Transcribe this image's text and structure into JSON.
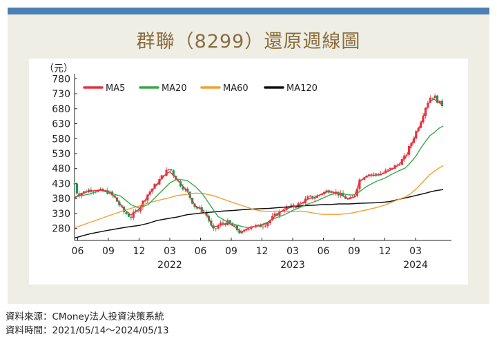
{
  "title": "群聯（8299）還原週線圖",
  "source_line": "資料來源：CMoney法人投資決策系統",
  "period_line": "資料時間：2021/05/14～2024/05/13",
  "chart_data": {
    "type": "candlestick",
    "title": "群聯（8299）還原週線圖",
    "ylabel": "（元）",
    "ylim": [
      240,
      790
    ],
    "y_ticks": [
      280,
      330,
      380,
      430,
      480,
      530,
      580,
      630,
      680,
      730,
      780
    ],
    "x_ticks": [
      {
        "t": 0.3,
        "label": "06"
      },
      {
        "t": 3.3,
        "label": "09"
      },
      {
        "t": 6.3,
        "label": "12"
      },
      {
        "t": 9.3,
        "label": "03"
      },
      {
        "t": 12.3,
        "label": "06"
      },
      {
        "t": 15.3,
        "label": "09"
      },
      {
        "t": 18.3,
        "label": "12"
      },
      {
        "t": 21.3,
        "label": "03"
      },
      {
        "t": 24.3,
        "label": "06"
      },
      {
        "t": 27.3,
        "label": "09"
      },
      {
        "t": 30.3,
        "label": "12"
      },
      {
        "t": 33.3,
        "label": "03"
      }
    ],
    "year_labels": [
      {
        "t": 9.3,
        "label": "2022"
      },
      {
        "t": 21.3,
        "label": "2023"
      },
      {
        "t": 33.3,
        "label": "2024"
      }
    ],
    "x_range": [
      0,
      36.8
    ],
    "legend": [
      {
        "name": "MA5",
        "color": "#e8323c"
      },
      {
        "name": "MA20",
        "color": "#3aa84a"
      },
      {
        "name": "MA60",
        "color": "#f0a030"
      },
      {
        "name": "MA120",
        "color": "#111111"
      }
    ],
    "legend_position": "top-left",
    "grid": false,
    "up_color": "#e8323c",
    "down_color": "#1a9a52",
    "price_path": [
      [
        0,
        430
      ],
      [
        0.3,
        392
      ],
      [
        0.8,
        400
      ],
      [
        1.5,
        410
      ],
      [
        2.5,
        405
      ],
      [
        3.3,
        402
      ],
      [
        4.0,
        378
      ],
      [
        4.8,
        335
      ],
      [
        5.5,
        318
      ],
      [
        6.3,
        348
      ],
      [
        7.2,
        398
      ],
      [
        8.0,
        430
      ],
      [
        8.8,
        465
      ],
      [
        9.3,
        482
      ],
      [
        10.0,
        440
      ],
      [
        11.0,
        402
      ],
      [
        11.8,
        350
      ],
      [
        12.5,
        340
      ],
      [
        13.0,
        318
      ],
      [
        13.5,
        270
      ],
      [
        14.2,
        295
      ],
      [
        15.0,
        300
      ],
      [
        15.8,
        278
      ],
      [
        16.3,
        262
      ],
      [
        17.2,
        290
      ],
      [
        18.0,
        286
      ],
      [
        18.8,
        298
      ],
      [
        19.5,
        322
      ],
      [
        20.5,
        348
      ],
      [
        21.3,
        352
      ],
      [
        22.0,
        362
      ],
      [
        22.8,
        382
      ],
      [
        23.5,
        385
      ],
      [
        24.3,
        400
      ],
      [
        25.0,
        410
      ],
      [
        25.8,
        395
      ],
      [
        26.8,
        375
      ],
      [
        27.3,
        385
      ],
      [
        27.8,
        442
      ],
      [
        28.5,
        462
      ],
      [
        29.5,
        460
      ],
      [
        30.3,
        468
      ],
      [
        30.8,
        478
      ],
      [
        31.5,
        492
      ],
      [
        32.3,
        520
      ],
      [
        32.8,
        560
      ],
      [
        33.3,
        600
      ],
      [
        33.8,
        640
      ],
      [
        34.3,
        690
      ],
      [
        34.7,
        718
      ],
      [
        35.1,
        722
      ],
      [
        35.6,
        700
      ],
      [
        36.0,
        690
      ]
    ],
    "ma5": [
      [
        0,
        380
      ],
      [
        0.5,
        395
      ],
      [
        1.5,
        405
      ],
      [
        2.5,
        408
      ],
      [
        3.3,
        404
      ],
      [
        4.0,
        385
      ],
      [
        4.8,
        345
      ],
      [
        5.5,
        325
      ],
      [
        6.3,
        345
      ],
      [
        7.2,
        390
      ],
      [
        8.0,
        425
      ],
      [
        8.8,
        458
      ],
      [
        9.3,
        470
      ],
      [
        10.0,
        445
      ],
      [
        11.0,
        405
      ],
      [
        11.8,
        355
      ],
      [
        12.5,
        342
      ],
      [
        13.0,
        320
      ],
      [
        13.5,
        282
      ],
      [
        14.2,
        292
      ],
      [
        15.0,
        298
      ],
      [
        15.8,
        282
      ],
      [
        16.3,
        268
      ],
      [
        17.2,
        285
      ],
      [
        18.0,
        288
      ],
      [
        18.8,
        297
      ],
      [
        19.5,
        318
      ],
      [
        20.5,
        345
      ],
      [
        21.3,
        352
      ],
      [
        22.0,
        360
      ],
      [
        22.8,
        378
      ],
      [
        23.5,
        384
      ],
      [
        24.3,
        398
      ],
      [
        25.0,
        405
      ],
      [
        25.8,
        395
      ],
      [
        26.8,
        378
      ],
      [
        27.3,
        385
      ],
      [
        27.8,
        435
      ],
      [
        28.5,
        455
      ],
      [
        29.5,
        458
      ],
      [
        30.3,
        465
      ],
      [
        30.8,
        474
      ],
      [
        31.5,
        488
      ],
      [
        32.3,
        515
      ],
      [
        32.8,
        552
      ],
      [
        33.3,
        590
      ],
      [
        33.8,
        628
      ],
      [
        34.3,
        675
      ],
      [
        34.7,
        705
      ],
      [
        35.1,
        712
      ],
      [
        35.6,
        700
      ],
      [
        36.0,
        690
      ]
    ],
    "ma20": [
      [
        0,
        385
      ],
      [
        1.5,
        395
      ],
      [
        2.5,
        408
      ],
      [
        3.3,
        400
      ],
      [
        4.5,
        388
      ],
      [
        5.5,
        360
      ],
      [
        6.3,
        348
      ],
      [
        7.2,
        360
      ],
      [
        8.0,
        388
      ],
      [
        8.8,
        415
      ],
      [
        9.3,
        432
      ],
      [
        10.0,
        445
      ],
      [
        11.0,
        440
      ],
      [
        11.8,
        420
      ],
      [
        12.5,
        395
      ],
      [
        13.2,
        360
      ],
      [
        14.0,
        320
      ],
      [
        15.0,
        300
      ],
      [
        15.8,
        292
      ],
      [
        16.5,
        285
      ],
      [
        17.2,
        282
      ],
      [
        18.0,
        290
      ],
      [
        18.8,
        300
      ],
      [
        19.5,
        313
      ],
      [
        20.5,
        326
      ],
      [
        21.3,
        340
      ],
      [
        22.0,
        350
      ],
      [
        22.8,
        362
      ],
      [
        23.5,
        370
      ],
      [
        24.3,
        382
      ],
      [
        25.0,
        393
      ],
      [
        25.8,
        398
      ],
      [
        26.8,
        392
      ],
      [
        27.3,
        392
      ],
      [
        27.8,
        402
      ],
      [
        28.5,
        420
      ],
      [
        29.5,
        438
      ],
      [
        30.3,
        448
      ],
      [
        30.8,
        458
      ],
      [
        31.5,
        470
      ],
      [
        32.3,
        482
      ],
      [
        32.8,
        500
      ],
      [
        33.3,
        520
      ],
      [
        33.8,
        548
      ],
      [
        34.3,
        572
      ],
      [
        34.7,
        590
      ],
      [
        35.1,
        600
      ],
      [
        35.6,
        615
      ],
      [
        36.0,
        622
      ]
    ],
    "ma60": [
      [
        0,
        282
      ],
      [
        1.5,
        300
      ],
      [
        3.3,
        322
      ],
      [
        5.0,
        342
      ],
      [
        6.3,
        355
      ],
      [
        7.2,
        365
      ],
      [
        8.0,
        372
      ],
      [
        9.3,
        383
      ],
      [
        10.0,
        390
      ],
      [
        11.0,
        394
      ],
      [
        11.8,
        398
      ],
      [
        12.5,
        397
      ],
      [
        13.5,
        390
      ],
      [
        14.5,
        378
      ],
      [
        15.5,
        366
      ],
      [
        16.5,
        355
      ],
      [
        17.5,
        343
      ],
      [
        18.3,
        338
      ],
      [
        19.0,
        337
      ],
      [
        19.8,
        338
      ],
      [
        20.5,
        336
      ],
      [
        21.3,
        336
      ],
      [
        22.0,
        338
      ],
      [
        22.8,
        335
      ],
      [
        23.5,
        330
      ],
      [
        24.3,
        327
      ],
      [
        25.0,
        327
      ],
      [
        25.8,
        327
      ],
      [
        26.8,
        330
      ],
      [
        27.3,
        333
      ],
      [
        27.8,
        337
      ],
      [
        28.5,
        342
      ],
      [
        29.5,
        350
      ],
      [
        30.3,
        358
      ],
      [
        30.8,
        365
      ],
      [
        31.5,
        375
      ],
      [
        32.3,
        385
      ],
      [
        32.8,
        396
      ],
      [
        33.3,
        410
      ],
      [
        33.8,
        428
      ],
      [
        34.3,
        446
      ],
      [
        34.7,
        460
      ],
      [
        35.1,
        470
      ],
      [
        35.6,
        482
      ],
      [
        36.0,
        490
      ]
    ],
    "ma120": [
      [
        0,
        248
      ],
      [
        1.5,
        262
      ],
      [
        3.3,
        274
      ],
      [
        5.0,
        284
      ],
      [
        6.3,
        290
      ],
      [
        7.2,
        297
      ],
      [
        8.0,
        306
      ],
      [
        9.3,
        314
      ],
      [
        10.0,
        318
      ],
      [
        11.0,
        326
      ],
      [
        12.5,
        332
      ],
      [
        13.5,
        335
      ],
      [
        14.5,
        338
      ],
      [
        15.5,
        340
      ],
      [
        16.5,
        343
      ],
      [
        17.5,
        345
      ],
      [
        18.3,
        346
      ],
      [
        19.0,
        347
      ],
      [
        20.0,
        350
      ],
      [
        21.3,
        353
      ],
      [
        22.0,
        355
      ],
      [
        22.8,
        357
      ],
      [
        23.5,
        358
      ],
      [
        24.3,
        360
      ],
      [
        25.0,
        360
      ],
      [
        25.8,
        362
      ],
      [
        26.8,
        362
      ],
      [
        27.3,
        363
      ],
      [
        27.8,
        364
      ],
      [
        28.5,
        365
      ],
      [
        29.5,
        366
      ],
      [
        30.3,
        368
      ],
      [
        30.8,
        370
      ],
      [
        31.5,
        376
      ],
      [
        32.3,
        382
      ],
      [
        32.8,
        386
      ],
      [
        33.3,
        390
      ],
      [
        33.8,
        394
      ],
      [
        34.3,
        398
      ],
      [
        34.7,
        402
      ],
      [
        35.1,
        405
      ],
      [
        35.6,
        408
      ],
      [
        36.0,
        410
      ]
    ]
  }
}
